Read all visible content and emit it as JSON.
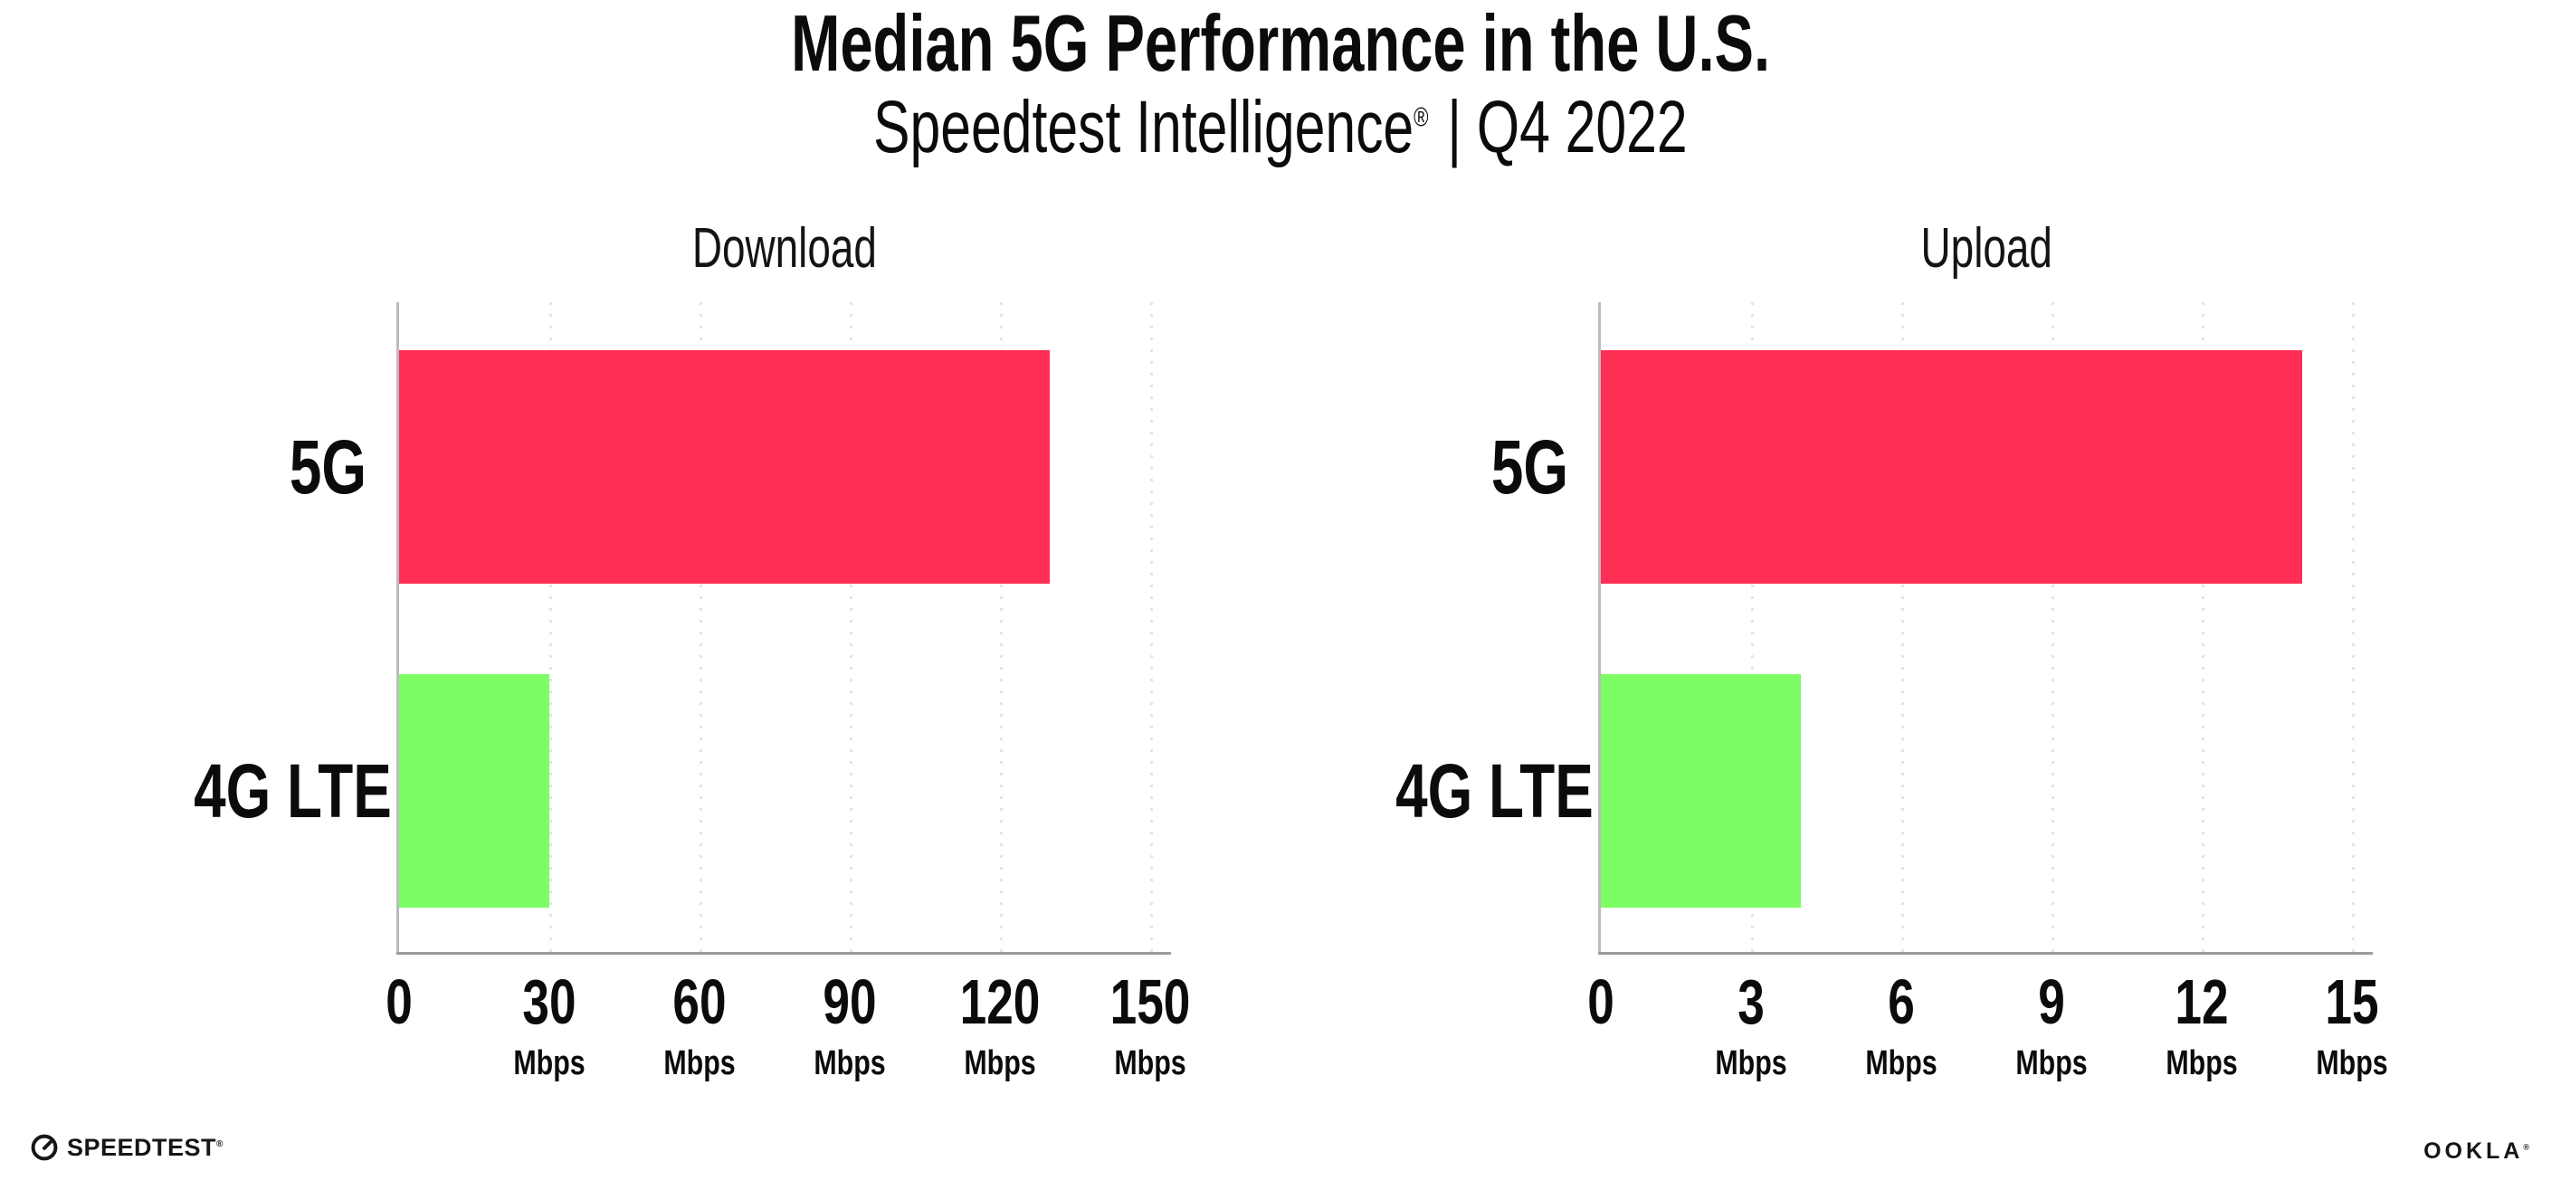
{
  "header": {
    "title": "Median 5G Performance in the U.S.",
    "subtitle": {
      "brand": "Speedtest Intelligence",
      "reg": "®",
      "rest": "| Q4 2022"
    }
  },
  "chart_data": [
    {
      "type": "bar",
      "orientation": "horizontal",
      "title": "Download",
      "categories": [
        "5G",
        "4G LTE"
      ],
      "values": [
        130,
        30
      ],
      "unit": "Mbps",
      "xlabel": "",
      "xlim": [
        0,
        150
      ],
      "xticks": [
        0,
        30,
        60,
        90,
        120,
        150
      ],
      "tick_labels": [
        "0",
        "30",
        "60",
        "90",
        "120",
        "150"
      ],
      "bar_colors": [
        "#FF2E55",
        "#7DFC65"
      ],
      "grid": "dotted-vertical-gridlines",
      "legend": "none"
    },
    {
      "type": "bar",
      "orientation": "horizontal",
      "title": "Upload",
      "categories": [
        "5G",
        "4G LTE"
      ],
      "values": [
        14,
        4
      ],
      "unit": "Mbps",
      "xlabel": "",
      "xlim": [
        0,
        15
      ],
      "xticks": [
        0,
        3,
        6,
        9,
        12,
        15
      ],
      "tick_labels": [
        "0",
        "3",
        "6",
        "9",
        "12",
        "15"
      ],
      "bar_colors": [
        "#FF2E55",
        "#7DFC65"
      ],
      "grid": "dotted-vertical-gridlines",
      "legend": "none"
    }
  ],
  "footer": {
    "speedtest": "SPEEDTEST",
    "speedtest_reg": "®",
    "ookla": "OOKLA",
    "ookla_reg": "®"
  },
  "colors": {
    "bar_5g": "#FF2E55",
    "bar_4g_lte": "#7DFC65",
    "gridline": "#E3E3EC",
    "axis": "#9A9AA0",
    "text": "#0B0B0B"
  }
}
